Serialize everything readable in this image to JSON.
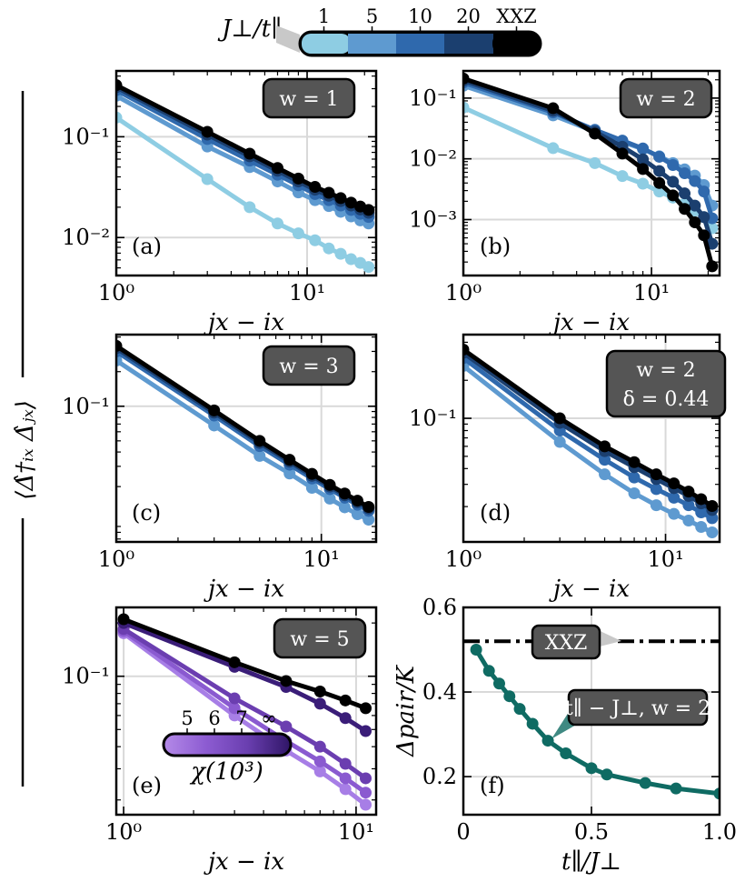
{
  "colors": {
    "J1": "#8ecde3",
    "J5": "#5e9ad0",
    "J10": "#2f69ad",
    "J20": "#1b3f6f",
    "XXZ": "#000000",
    "chi5": "#a77ee6",
    "chi6": "#8a5ad0",
    "chi7": "#6b3eb0",
    "chiInf": "#3a1d78",
    "pair": "#0f6b63",
    "badge": "#555555"
  },
  "colorbar_top": {
    "title": "J⊥/t∥",
    "labels": [
      "1",
      "5",
      "10",
      "20",
      "XXZ"
    ]
  },
  "colorbar_chi": {
    "title": "χ(10³)",
    "labels": [
      "5",
      "6",
      "7",
      "∞"
    ]
  },
  "ylabel_shared": "⟨Δ̂†ᵢₓ Δ̂ⱼₓ⟩",
  "chart_data": [
    {
      "id": "a",
      "type": "line",
      "panel_label": "(a)",
      "badge": [
        "w = 1"
      ],
      "xlabel": "jx − ix",
      "xscale": "log",
      "yscale": "log",
      "xlim": [
        1,
        23
      ],
      "ylim": [
        0.0042,
        0.45
      ],
      "xticks": [
        {
          "v": 1,
          "label": "10⁰"
        },
        {
          "v": 10,
          "label": "10¹"
        }
      ],
      "yticks": [
        {
          "v": 0.1,
          "label": "10⁻¹"
        },
        {
          "v": 0.01,
          "label": "10⁻²"
        }
      ],
      "series": [
        {
          "color_key": "J1",
          "x": [
            1,
            3,
            5,
            7,
            9,
            11,
            13,
            15,
            17,
            19,
            21
          ],
          "y": [
            0.155,
            0.038,
            0.02,
            0.0138,
            0.011,
            0.0094,
            0.0078,
            0.0069,
            0.0061,
            0.0056,
            0.0051
          ]
        },
        {
          "color_key": "J5",
          "x": [
            1,
            3,
            5,
            7,
            9,
            11,
            13,
            15,
            17,
            19,
            21
          ],
          "y": [
            0.255,
            0.08,
            0.05,
            0.036,
            0.028,
            0.0235,
            0.0205,
            0.018,
            0.0162,
            0.0148,
            0.0138
          ]
        },
        {
          "color_key": "J10",
          "x": [
            1,
            3,
            5,
            7,
            9,
            11,
            13,
            15,
            17,
            19,
            21
          ],
          "y": [
            0.29,
            0.095,
            0.058,
            0.042,
            0.033,
            0.027,
            0.0235,
            0.0208,
            0.0188,
            0.0172,
            0.016
          ]
        },
        {
          "color_key": "J20",
          "x": [
            1,
            3,
            5,
            7,
            9,
            11,
            13,
            15,
            17,
            19,
            21
          ],
          "y": [
            0.31,
            0.105,
            0.064,
            0.046,
            0.036,
            0.0298,
            0.026,
            0.023,
            0.0208,
            0.019,
            0.0176
          ]
        },
        {
          "color_key": "XXZ",
          "x": [
            1,
            3,
            5,
            7,
            9,
            11,
            13,
            15,
            17,
            19,
            21
          ],
          "y": [
            0.325,
            0.112,
            0.068,
            0.049,
            0.0385,
            0.0318,
            0.0278,
            0.0246,
            0.0222,
            0.0203,
            0.0188
          ]
        }
      ]
    },
    {
      "id": "b",
      "type": "line",
      "panel_label": "(b)",
      "badge": [
        "w = 2"
      ],
      "xlabel": "jx − ix",
      "xscale": "log",
      "yscale": "log",
      "xlim": [
        1,
        23
      ],
      "ylim": [
        0.00012,
        0.28
      ],
      "xticks": [
        {
          "v": 1,
          "label": "10⁰"
        },
        {
          "v": 10,
          "label": "10¹"
        }
      ],
      "yticks": [
        {
          "v": 0.1,
          "label": "10⁻¹"
        },
        {
          "v": 0.01,
          "label": "10⁻²"
        },
        {
          "v": 0.001,
          "label": "10⁻³"
        }
      ],
      "series": [
        {
          "color_key": "J1",
          "x": [
            1,
            3,
            5,
            7,
            9,
            11,
            13,
            15,
            17,
            19,
            21
          ],
          "y": [
            0.07,
            0.015,
            0.0085,
            0.0052,
            0.0039,
            0.0029,
            0.0023,
            0.0018,
            0.0014,
            0.0011,
            0.00072
          ]
        },
        {
          "color_key": "J5",
          "x": [
            1,
            3,
            5,
            7,
            9,
            11,
            13,
            15,
            17,
            19,
            21
          ],
          "y": [
            0.16,
            0.052,
            0.028,
            0.019,
            0.0145,
            0.011,
            0.0085,
            0.0067,
            0.0053,
            0.0037,
            0.0017
          ]
        },
        {
          "color_key": "J10",
          "x": [
            1,
            3,
            5,
            7,
            9,
            11,
            13,
            15,
            17,
            19,
            21
          ],
          "y": [
            0.18,
            0.058,
            0.03,
            0.02,
            0.0148,
            0.0108,
            0.0079,
            0.0058,
            0.0043,
            0.0029,
            0.00105
          ]
        },
        {
          "color_key": "J20",
          "x": [
            1,
            3,
            5,
            7,
            9,
            11,
            13,
            15,
            17,
            19,
            21
          ],
          "y": [
            0.195,
            0.062,
            0.028,
            0.0158,
            0.0098,
            0.0063,
            0.0042,
            0.0027,
            0.0017,
            0.0011,
            0.0004
          ]
        },
        {
          "color_key": "XXZ",
          "x": [
            1,
            3,
            5,
            7,
            9,
            11,
            13,
            15,
            17,
            19,
            21
          ],
          "y": [
            0.21,
            0.068,
            0.026,
            0.0122,
            0.0068,
            0.004,
            0.0025,
            0.0015,
            0.0009,
            0.00055,
            0.00017
          ]
        }
      ]
    },
    {
      "id": "c",
      "type": "line",
      "panel_label": "(c)",
      "badge": [
        "w = 3"
      ],
      "xlabel": "jx − ix",
      "xscale": "log",
      "yscale": "log",
      "xlim": [
        1,
        18.5
      ],
      "ylim": [
        0.0066,
        0.42
      ],
      "xticks": [
        {
          "v": 1,
          "label": "10⁰"
        },
        {
          "v": 10,
          "label": "10¹"
        }
      ],
      "yticks": [
        {
          "v": 0.1,
          "label": "10⁻¹"
        }
      ],
      "series": [
        {
          "color_key": "J5",
          "x": [
            1,
            3,
            5,
            7,
            9,
            11,
            13,
            15,
            17
          ],
          "y": [
            0.25,
            0.068,
            0.037,
            0.026,
            0.0195,
            0.0157,
            0.0132,
            0.0115,
            0.0103
          ]
        },
        {
          "color_key": "J10",
          "x": [
            1,
            3,
            5,
            7,
            9,
            11,
            13,
            15,
            17
          ],
          "y": [
            0.3,
            0.083,
            0.045,
            0.031,
            0.0235,
            0.019,
            0.016,
            0.0139,
            0.0123
          ]
        },
        {
          "color_key": "J20",
          "x": [
            1,
            3,
            5,
            7,
            9,
            11,
            13,
            15,
            17
          ],
          "y": [
            0.32,
            0.088,
            0.048,
            0.033,
            0.0248,
            0.02,
            0.0168,
            0.0146,
            0.0129
          ]
        },
        {
          "color_key": "XXZ",
          "x": [
            1,
            3,
            5,
            7,
            9,
            11,
            13,
            15,
            17
          ],
          "y": [
            0.335,
            0.092,
            0.05,
            0.0342,
            0.0258,
            0.0207,
            0.0174,
            0.0151,
            0.0133
          ]
        }
      ]
    },
    {
      "id": "d",
      "type": "line",
      "panel_label": "(d)",
      "badge": [
        "w = 2",
        "δ = 0.44"
      ],
      "xlabel": "jx − ix",
      "xscale": "log",
      "yscale": "log",
      "xlim": [
        1,
        18.5
      ],
      "ylim": [
        0.0105,
        0.46
      ],
      "xticks": [
        {
          "v": 1,
          "label": "10⁰"
        },
        {
          "v": 10,
          "label": "10¹"
        }
      ],
      "yticks": [
        {
          "v": 0.1,
          "label": "10⁻¹"
        }
      ],
      "series": [
        {
          "color_key": "J5",
          "x": [
            1,
            3,
            5,
            7,
            9,
            11,
            13,
            15,
            17
          ],
          "y": [
            0.26,
            0.065,
            0.036,
            0.0255,
            0.0205,
            0.0175,
            0.0155,
            0.0138,
            0.0125
          ]
        },
        {
          "color_key": "J10",
          "x": [
            1,
            3,
            5,
            7,
            9,
            11,
            13,
            15,
            17
          ],
          "y": [
            0.3,
            0.08,
            0.047,
            0.034,
            0.0275,
            0.0235,
            0.0205,
            0.018,
            0.0162
          ]
        },
        {
          "color_key": "J20",
          "x": [
            1,
            3,
            5,
            7,
            9,
            11,
            13,
            15,
            17
          ],
          "y": [
            0.33,
            0.092,
            0.055,
            0.041,
            0.033,
            0.028,
            0.0243,
            0.0212,
            0.0188
          ]
        },
        {
          "color_key": "XXZ",
          "x": [
            1,
            3,
            5,
            7,
            9,
            11,
            13,
            15,
            17
          ],
          "y": [
            0.35,
            0.1,
            0.06,
            0.045,
            0.036,
            0.0305,
            0.0263,
            0.0229,
            0.0202
          ]
        }
      ]
    },
    {
      "id": "e",
      "type": "line",
      "panel_label": "(e)",
      "badge": [
        "w = 5"
      ],
      "xlabel": "jx − ix",
      "xscale": "log",
      "yscale": "log",
      "xlim": [
        0.93,
        12.2
      ],
      "ylim": [
        0.0165,
        0.245
      ],
      "xticks": [
        {
          "v": 1,
          "label": "10⁰"
        },
        {
          "v": 10,
          "label": "10¹"
        }
      ],
      "yticks": [
        {
          "v": 0.1,
          "label": "10⁻¹"
        }
      ],
      "series": [
        {
          "color_key": "chi5",
          "x": [
            1,
            3,
            5,
            7,
            9,
            11
          ],
          "y": [
            0.175,
            0.06,
            0.038,
            0.029,
            0.023,
            0.0188
          ]
        },
        {
          "color_key": "chi6",
          "x": [
            1,
            3,
            5,
            7,
            9,
            11
          ],
          "y": [
            0.18,
            0.066,
            0.043,
            0.033,
            0.0265,
            0.022
          ]
        },
        {
          "color_key": "chi7",
          "x": [
            1,
            3,
            5,
            7,
            9,
            11
          ],
          "y": [
            0.185,
            0.075,
            0.052,
            0.04,
            0.032,
            0.0265
          ]
        },
        {
          "color_key": "chiInf",
          "x": [
            1,
            3,
            5,
            7,
            9,
            11
          ],
          "y": [
            0.2,
            0.113,
            0.087,
            0.07,
            0.058,
            0.049
          ]
        },
        {
          "color_key": "XXZ",
          "x": [
            1,
            3,
            5,
            7,
            9,
            11
          ],
          "y": [
            0.21,
            0.12,
            0.094,
            0.082,
            0.073,
            0.066
          ]
        }
      ]
    },
    {
      "id": "f",
      "type": "line",
      "panel_label": "(f)",
      "xlabel": "t∥/J⊥",
      "ylabel": "Δpair/K",
      "xscale": "linear",
      "yscale": "linear",
      "xlim": [
        0,
        1
      ],
      "ylim": [
        0.11,
        0.6
      ],
      "xticks": [
        {
          "v": 0,
          "label": "0"
        },
        {
          "v": 0.5,
          "label": "0.5"
        },
        {
          "v": 1,
          "label": "1.0"
        }
      ],
      "yticks": [
        {
          "v": 0.2,
          "label": "0.2"
        },
        {
          "v": 0.4,
          "label": "0.4"
        },
        {
          "v": 0.6,
          "label": "0.6"
        }
      ],
      "hline": {
        "y": 0.52,
        "label": "XXZ"
      },
      "series": [
        {
          "color_key": "pair",
          "label": "t∥ − J⊥, w = 2",
          "x": [
            0.05,
            0.1,
            0.14,
            0.18,
            0.22,
            0.27,
            0.33,
            0.4,
            0.5,
            0.56,
            0.71,
            0.83,
            1.0
          ],
          "y": [
            0.5,
            0.45,
            0.42,
            0.39,
            0.36,
            0.325,
            0.285,
            0.255,
            0.22,
            0.205,
            0.185,
            0.172,
            0.16
          ]
        }
      ]
    }
  ]
}
